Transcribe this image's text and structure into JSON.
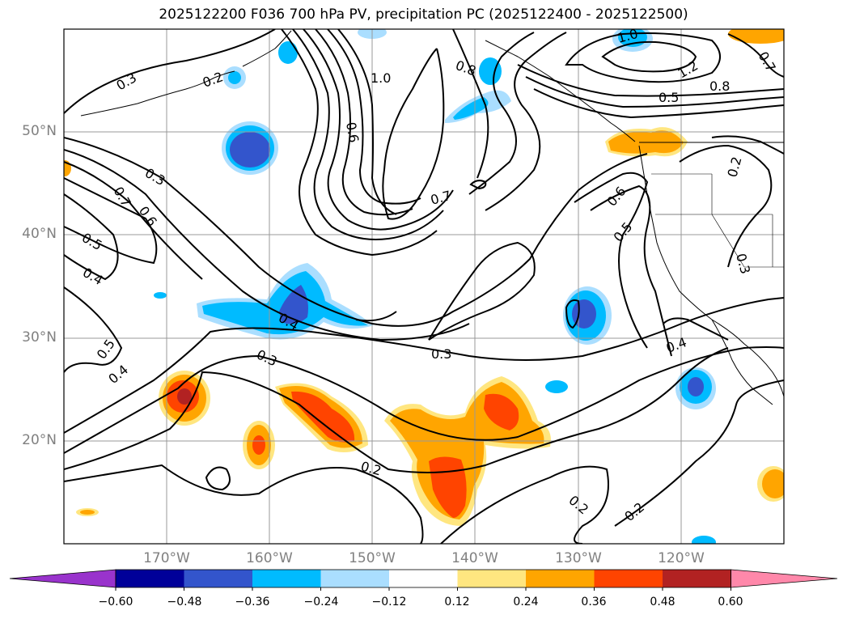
{
  "title": "2025122200 F036 700 hPa PV, precipitation PC (2025122400 - 2025122500)",
  "lat_labels": [
    "50°N",
    "40°N",
    "30°N",
    "20°N"
  ],
  "lon_labels": [
    "170°W",
    "160°W",
    "150°W",
    "140°W",
    "130°W",
    "120°W"
  ],
  "colorbar": {
    "ticks": [
      "−0.60",
      "−0.48",
      "−0.36",
      "−0.24",
      "−0.12",
      "0.12",
      "0.24",
      "0.36",
      "0.48",
      "0.60"
    ],
    "colors": [
      "#9933cc",
      "#000099",
      "#3355cc",
      "#00bbff",
      "#aadeff",
      "#ffffff",
      "#ffe680",
      "#ffa500",
      "#ff4400",
      "#b22222",
      "#ff88aa"
    ]
  },
  "pv_contour_labels": [
    "0.3",
    "0.2",
    "1.0",
    "0.8",
    "0.6",
    "1.0",
    "1.2",
    "0.8",
    "0.5",
    "0.3",
    "0.7",
    "0.6",
    "0.5",
    "0.4",
    "0.7",
    "0.6",
    "0.5",
    "0.4",
    "0.3",
    "0.5",
    "0.4",
    "0.3",
    "0.4",
    "0.2",
    "0.2",
    "0.2",
    "0.7",
    "0.2",
    "0.3"
  ],
  "colors": {
    "contour": "#000000",
    "grid": "#999999",
    "coast": "#000000"
  }
}
